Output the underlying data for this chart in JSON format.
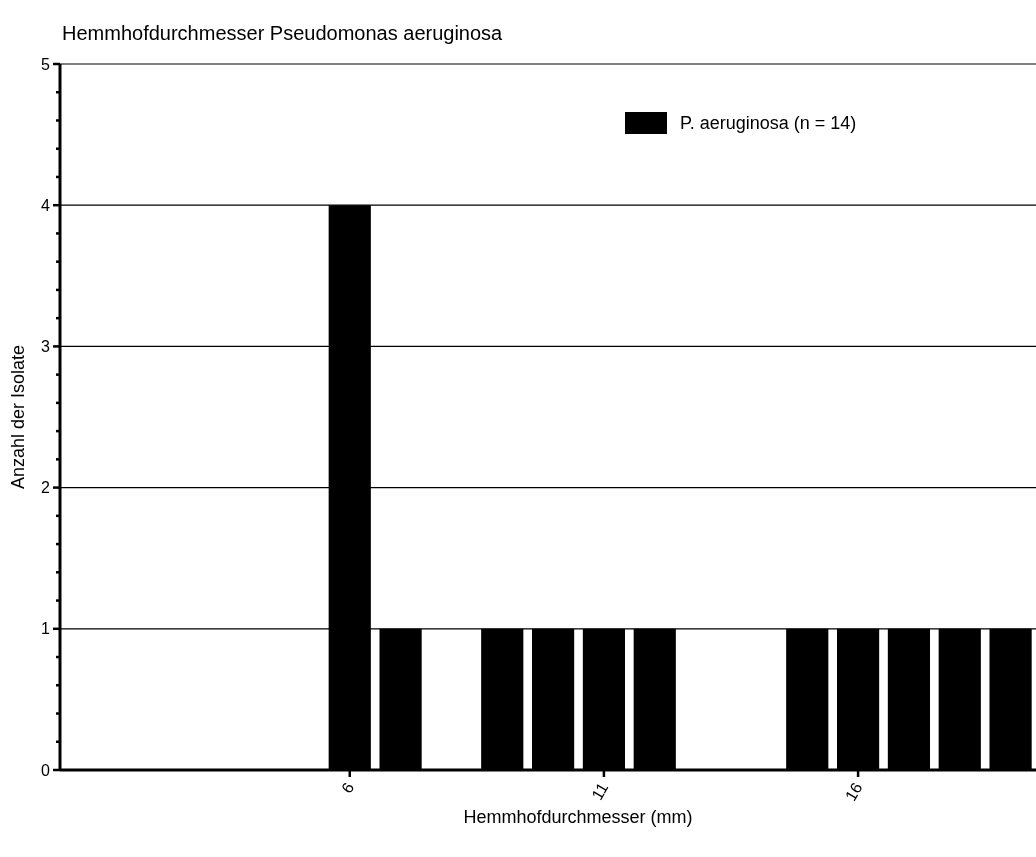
{
  "chart_data": {
    "type": "bar",
    "title": "Hemmhofdurchmesser Pseudomonas aeruginosa",
    "xlabel": "Hemmhofdurchmesser (mm)",
    "ylabel": "Anzahl der Isolate",
    "x": [
      6,
      7,
      9,
      10,
      11,
      12,
      15,
      16,
      17,
      18,
      19
    ],
    "series": [
      {
        "name": "P. aeruginosa (n = 14)",
        "color": "#000000",
        "values": [
          4,
          1,
          1,
          1,
          1,
          1,
          1,
          1,
          1,
          1,
          1
        ]
      }
    ],
    "xlim": [
      0.3,
      19.5
    ],
    "xticks": [
      6,
      11,
      16
    ],
    "ylim": [
      0,
      5
    ],
    "yticks": [
      0,
      {
        "value": 0.2,
        "label": null
      },
      {
        "value": 0.4,
        "label": null
      },
      {
        "value": 0.6,
        "label": null
      },
      {
        "value": 0.8,
        "label": null
      },
      1,
      {
        "value": 1.2,
        "label": null
      },
      {
        "value": 1.4,
        "label": null
      },
      {
        "value": 1.6,
        "label": null
      },
      {
        "value": 1.8,
        "label": null
      },
      2,
      {
        "value": 2.2,
        "label": null
      },
      {
        "value": 2.4,
        "label": null
      },
      {
        "value": 2.6,
        "label": null
      },
      {
        "value": 2.8,
        "label": null
      },
      3,
      {
        "value": 3.2,
        "label": null
      },
      {
        "value": 3.4,
        "label": null
      },
      {
        "value": 3.6,
        "label": null
      },
      {
        "value": 3.8,
        "label": null
      },
      4,
      {
        "value": 4.2,
        "label": null
      },
      {
        "value": 4.4,
        "label": null
      },
      {
        "value": 4.6,
        "label": null
      },
      {
        "value": 4.8,
        "label": null
      },
      5
    ],
    "grid": "y",
    "legend": "top right"
  }
}
